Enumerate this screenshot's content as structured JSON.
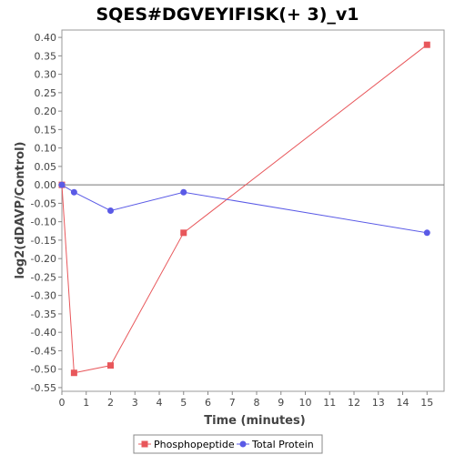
{
  "chart_data": {
    "type": "line",
    "title": "SQES#DGVEYIFISK(+ 3)_v1",
    "xlabel": "Time (minutes)",
    "ylabel": "log2(dDAVP/Control)",
    "xlim": [
      0,
      15.7
    ],
    "ylim": [
      -0.56,
      0.42
    ],
    "xticks": [
      0,
      1,
      2,
      3,
      4,
      5,
      6,
      7,
      8,
      9,
      10,
      11,
      12,
      13,
      14,
      15
    ],
    "yticks": [
      0.4,
      0.35,
      0.3,
      0.25,
      0.2,
      0.15,
      0.1,
      0.05,
      0.0,
      -0.05,
      -0.1,
      -0.15,
      -0.2,
      -0.25,
      -0.3,
      -0.35,
      -0.4,
      -0.45,
      -0.5,
      -0.55
    ],
    "ytick_labels": [
      "0.40",
      "0.35",
      "0.30",
      "0.25",
      "0.20",
      "0.15",
      "0.10",
      "0.05",
      "0.00",
      "-0.05",
      "-0.10",
      "-0.15",
      "-0.20",
      "-0.25",
      "-0.30",
      "-0.35",
      "-0.40",
      "-0.45",
      "-0.50",
      "-0.55"
    ],
    "grid": false,
    "zero_line": true,
    "legend_position": "bottom",
    "series": [
      {
        "name": "Phosphopeptide",
        "color": "#e8575b",
        "marker": "square",
        "x": [
          0,
          0.5,
          2,
          5,
          15
        ],
        "y": [
          0.0,
          -0.51,
          -0.49,
          -0.13,
          0.38
        ]
      },
      {
        "name": "Total Protein",
        "color": "#5a5ae6",
        "marker": "circle",
        "x": [
          0,
          0.5,
          2,
          5,
          15
        ],
        "y": [
          0.0,
          -0.02,
          -0.07,
          -0.02,
          -0.13
        ]
      }
    ]
  }
}
